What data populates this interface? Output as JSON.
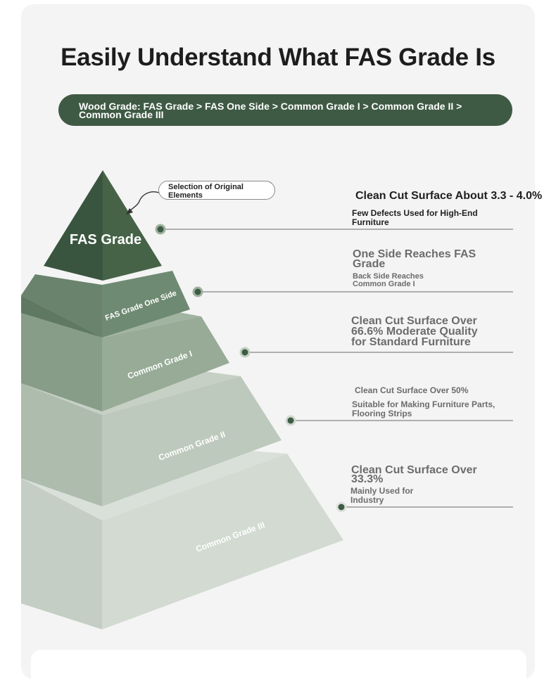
{
  "title": "Easily Understand What FAS Grade Is",
  "grade_sequence": "Wood Grade: FAS Grade > FAS One Side > Common Grade I > Common Grade II > Common Grade III",
  "callout": "Selection of Original Elements",
  "tiers": [
    {
      "name": "FAS Grade",
      "heading": "Clean Cut Surface About 3.3 - 4.0%",
      "detail": "Few Defects Used for High-End Furniture"
    },
    {
      "name": "FAS Grade One Side",
      "heading": "One Side Reaches FAS Grade",
      "detail": "Back Side Reaches Common Grade I"
    },
    {
      "name": "Common Grade I",
      "heading": "Clean Cut Surface Over 66.6% Moderate Quality for Standard Furniture",
      "detail": ""
    },
    {
      "name": "Common Grade II",
      "heading": "Clean Cut Surface Over 50%",
      "detail": "Suitable for Making Furniture Parts, Flooring Strips"
    },
    {
      "name": "Common Grade III",
      "heading": "Clean Cut Surface Over 33.3%",
      "detail": "Mainly Used for Industry"
    }
  ],
  "colors": {
    "dark_green": "#3f5a44",
    "tier_one_side": "#6f8a72",
    "tier_common_1": "#93a893",
    "tier_common_2": "#b5c3b4",
    "tier_common_3": "#cdd6cd",
    "leader_line": "#6a6a6a",
    "marker_dot": "#3e5b44"
  }
}
